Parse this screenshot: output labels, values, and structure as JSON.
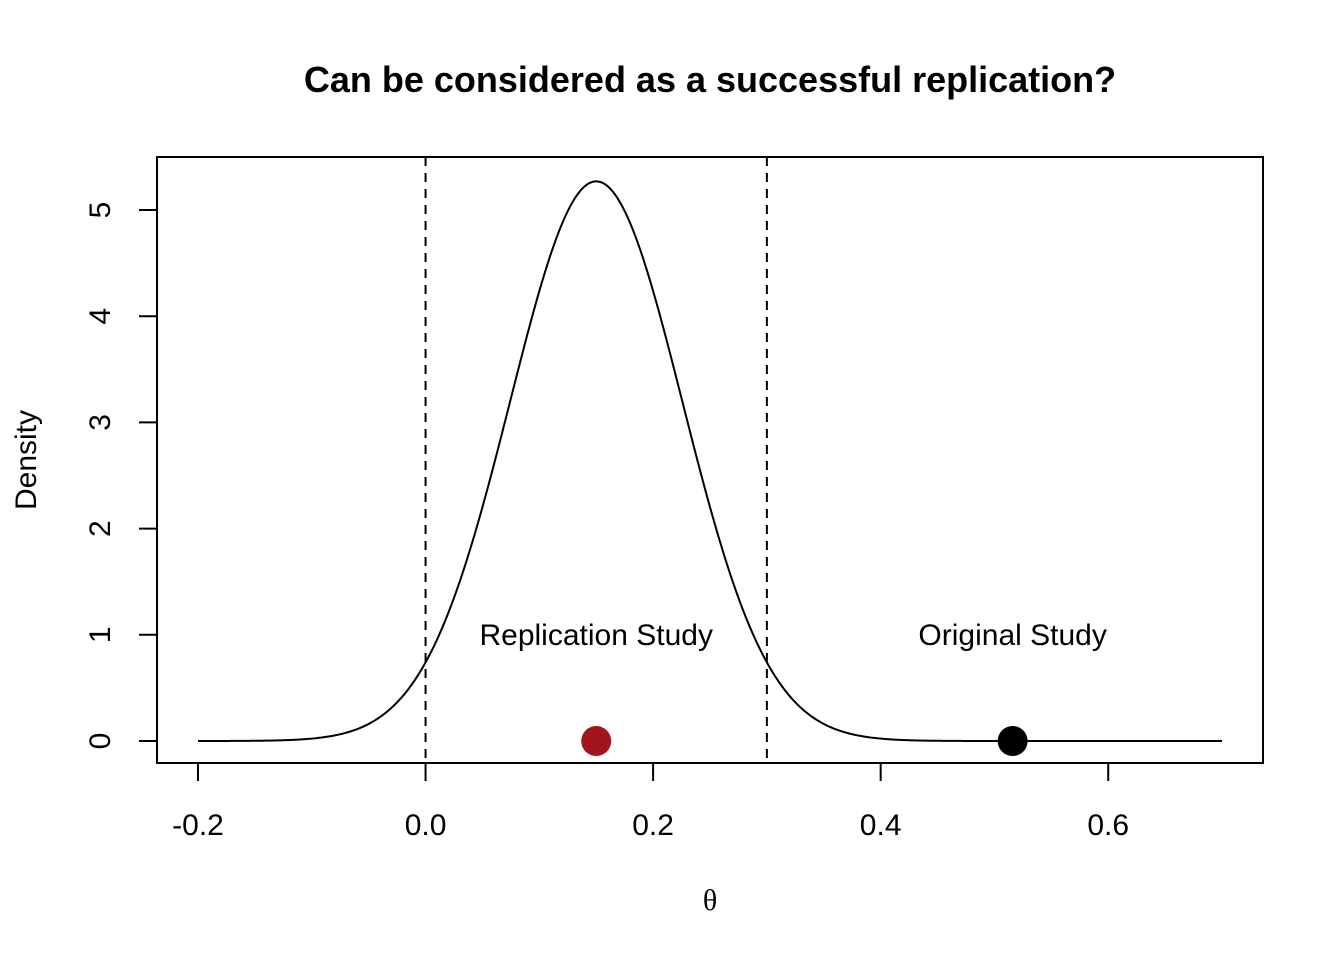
{
  "chart_data": {
    "type": "line",
    "title": "Can be considered as a successful replication?",
    "xlabel": "θ",
    "ylabel": "Density",
    "xlim": [
      -0.2,
      0.7
    ],
    "ylim": [
      0,
      5.3
    ],
    "x_ticks": [
      "-0.2",
      "0.0",
      "0.2",
      "0.4",
      "0.6"
    ],
    "y_ticks": [
      "0",
      "1",
      "2",
      "3",
      "4",
      "5"
    ],
    "grid": false,
    "legend": "none",
    "series": [
      {
        "distribution": "normal",
        "mean": 0.15,
        "sd": 0.0757,
        "x_range": [
          -0.2,
          0.7
        ],
        "color": "#000000"
      }
    ],
    "reference_lines": [
      {
        "orientation": "vertical",
        "x": 0.0,
        "style": "dashed",
        "color": "#000000"
      },
      {
        "orientation": "vertical",
        "x": 0.3,
        "style": "dashed",
        "color": "#000000"
      }
    ],
    "points": [
      {
        "label": "Replication Study",
        "x": 0.15,
        "y": 0,
        "color": "#a3151c"
      },
      {
        "label": "Original Study",
        "x": 0.516,
        "y": 0,
        "color": "#000000"
      }
    ],
    "annotations": [
      {
        "text": "Replication Study",
        "x": 0.15,
        "y": 1.0
      },
      {
        "text": "Original Study",
        "x": 0.516,
        "y": 1.0
      }
    ]
  }
}
